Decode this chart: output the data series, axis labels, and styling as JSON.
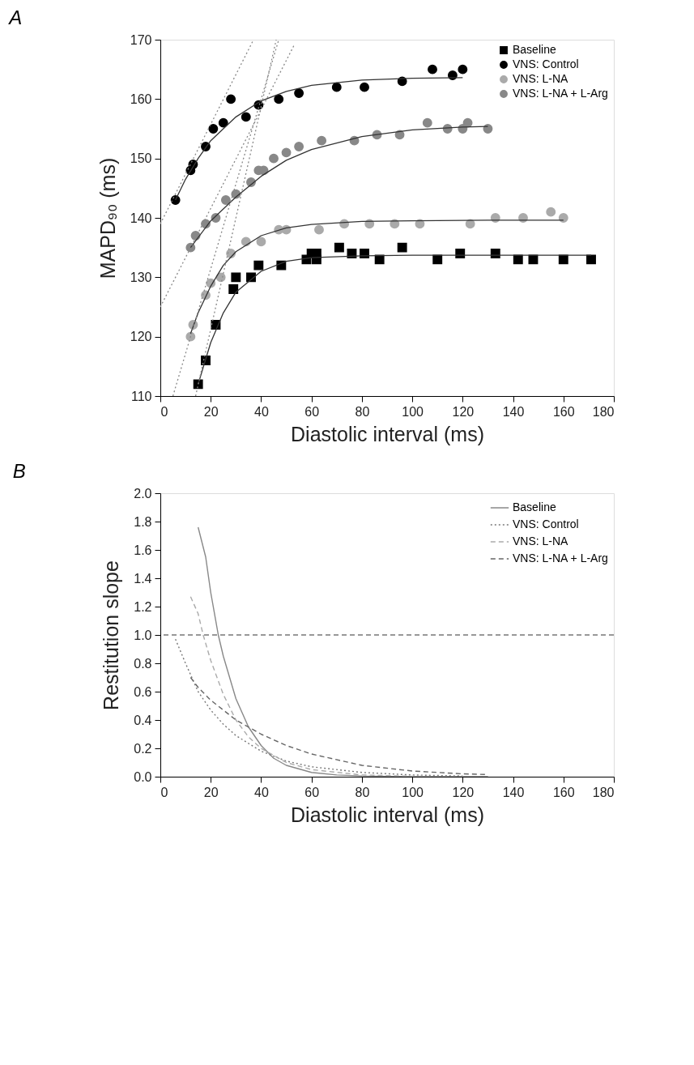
{
  "chart_data": [
    {
      "type": "scatter",
      "title": "A",
      "xlabel": "Diastolic interval (ms)",
      "ylabel": "MAPD₉₀ (ms)",
      "xlim": [
        0,
        180
      ],
      "xticks": [
        0,
        20,
        40,
        60,
        80,
        100,
        120,
        140,
        160,
        180
      ],
      "ylim": [
        110,
        170
      ],
      "yticks": [
        110,
        120,
        130,
        140,
        150,
        160,
        170
      ],
      "grid": false,
      "legend": "top right",
      "series": [
        {
          "name": "Baseline",
          "type": "scatter",
          "marker": "square",
          "color": "#000000",
          "x": [
            15,
            18,
            22,
            29,
            30,
            36,
            39,
            48,
            58,
            60,
            62,
            62,
            71,
            76,
            81,
            87,
            96,
            110,
            119,
            133,
            142,
            148,
            160,
            171
          ],
          "values": [
            112,
            116,
            122,
            128,
            130,
            130,
            132,
            132,
            133,
            134,
            134,
            133,
            135,
            134,
            134,
            133,
            135,
            133,
            134,
            134,
            133,
            133,
            133,
            133
          ]
        },
        {
          "name": "VNS: Control",
          "type": "scatter",
          "marker": "circle",
          "color": "#000000",
          "x": [
            6,
            12,
            13,
            18,
            21,
            25,
            28,
            34,
            39,
            47,
            55,
            70,
            81,
            96,
            108,
            116,
            120
          ],
          "values": [
            143,
            148,
            149,
            152,
            155,
            156,
            160,
            157,
            159,
            160,
            161,
            162,
            162,
            163,
            165,
            164,
            165
          ]
        },
        {
          "name": "VNS: L-NA",
          "type": "scatter",
          "marker": "circle",
          "color": "#aaaaaa",
          "x": [
            12,
            13,
            18,
            20,
            24,
            28,
            34,
            40,
            47,
            50,
            63,
            73,
            83,
            93,
            103,
            123,
            133,
            144,
            155,
            160
          ],
          "values": [
            120,
            122,
            127,
            129,
            130,
            134,
            136,
            136,
            138,
            138,
            138,
            139,
            139,
            139,
            139,
            139,
            140,
            140,
            141,
            140
          ]
        },
        {
          "name": "VNS: L-NA + L-Arg",
          "type": "scatter",
          "marker": "circle",
          "color": "#888888",
          "x": [
            12,
            14,
            18,
            22,
            26,
            30,
            36,
            39,
            41,
            45,
            50,
            55,
            64,
            77,
            86,
            95,
            106,
            114,
            120,
            122,
            130
          ],
          "values": [
            135,
            137,
            139,
            140,
            143,
            144,
            146,
            148,
            148,
            150,
            151,
            152,
            153,
            153,
            154,
            154,
            156,
            155,
            155,
            156,
            155
          ]
        },
        {
          "type": "line",
          "marker": "none",
          "line_style": "solid",
          "color": "#333333",
          "x": [
            15,
            20,
            25,
            30,
            40,
            50,
            60,
            80,
            100,
            130,
            171
          ],
          "values": [
            112,
            119,
            124,
            127.5,
            131,
            132.7,
            133.3,
            133.6,
            133.7,
            133.7,
            133.7
          ]
        },
        {
          "type": "line",
          "marker": "none",
          "line_style": "solid",
          "color": "#333333",
          "x": [
            6,
            10,
            15,
            20,
            30,
            40,
            50,
            60,
            80,
            100,
            120
          ],
          "values": [
            143,
            146.5,
            150,
            153,
            157,
            159.7,
            161.3,
            162.3,
            163.2,
            163.5,
            163.6
          ]
        },
        {
          "type": "line",
          "marker": "none",
          "line_style": "solid",
          "color": "#333333",
          "x": [
            12,
            15,
            20,
            25,
            30,
            40,
            50,
            60,
            80,
            100,
            130,
            160
          ],
          "values": [
            120.5,
            124,
            128.5,
            132,
            134.3,
            137,
            138.3,
            138.9,
            139.4,
            139.5,
            139.6,
            139.6
          ]
        },
        {
          "type": "line",
          "marker": "none",
          "line_style": "solid",
          "color": "#333333",
          "x": [
            12,
            20,
            30,
            40,
            50,
            60,
            80,
            100,
            120,
            130
          ],
          "values": [
            135,
            139.5,
            143.5,
            147,
            149.7,
            151.5,
            153.7,
            154.8,
            155.3,
            155.4
          ]
        },
        {
          "type": "line",
          "marker": "none",
          "line_style": "dotted",
          "color": "#888888",
          "x": [
            0,
            37
          ],
          "values": [
            139,
            170
          ]
        },
        {
          "type": "line",
          "marker": "none",
          "line_style": "dotted",
          "color": "#888888",
          "x": [
            0,
            53
          ],
          "values": [
            125,
            169
          ]
        },
        {
          "type": "line",
          "marker": "none",
          "line_style": "dotted",
          "color": "#888888",
          "x": [
            5,
            47
          ],
          "values": [
            110,
            170
          ]
        },
        {
          "type": "line",
          "marker": "none",
          "line_style": "dotted",
          "color": "#888888",
          "x": [
            14,
            46
          ],
          "values": [
            110,
            170
          ]
        }
      ]
    },
    {
      "type": "line",
      "title": "B",
      "xlabel": "Diastolic interval (ms)",
      "ylabel": "Restitution slope",
      "xlim": [
        0,
        180
      ],
      "xticks": [
        0,
        20,
        40,
        60,
        80,
        100,
        120,
        140,
        160,
        180
      ],
      "ylim": [
        0,
        2.0
      ],
      "yticks": [
        {
          "value": 0,
          "label": "0.0"
        },
        0.2,
        0.4,
        0.6,
        0.8,
        {
          "value": 1,
          "label": "1.0"
        },
        1.2,
        1.4,
        1.6,
        1.8,
        {
          "value": 2,
          "label": "2.0"
        }
      ],
      "grid": false,
      "legend": "top right",
      "marker": "none",
      "ref_lines": [
        {
          "axis": "y",
          "value": 1.0,
          "color": "#777777",
          "line_style": "dashed"
        }
      ],
      "series": [
        {
          "name": "Baseline",
          "line_style": "solid",
          "color": "#888888",
          "x": [
            15,
            18,
            20,
            23,
            25,
            30,
            35,
            40,
            45,
            50,
            60,
            70,
            80,
            100,
            130
          ],
          "values": [
            1.76,
            1.55,
            1.3,
            1.0,
            0.85,
            0.55,
            0.35,
            0.22,
            0.13,
            0.08,
            0.03,
            0.012,
            0.005,
            0.001,
            0
          ]
        },
        {
          "name": "VNS: Control",
          "line_style": "dotted",
          "color": "#777777",
          "x": [
            6,
            10,
            15,
            20,
            25,
            30,
            40,
            50,
            60,
            80,
            100,
            120
          ],
          "values": [
            0.97,
            0.8,
            0.6,
            0.47,
            0.37,
            0.29,
            0.18,
            0.11,
            0.07,
            0.03,
            0.012,
            0.005
          ]
        },
        {
          "name": "VNS: L-NA",
          "line_style": "dashed",
          "color": "#aaaaaa",
          "x": [
            12,
            15,
            17,
            20,
            25,
            30,
            35,
            40,
            50,
            60,
            80,
            100,
            130
          ],
          "values": [
            1.27,
            1.15,
            1.0,
            0.82,
            0.58,
            0.4,
            0.28,
            0.2,
            0.1,
            0.05,
            0.012,
            0.003,
            0
          ]
        },
        {
          "name": "VNS: L-NA + L-Arg",
          "line_style": "dashed",
          "color": "#666666",
          "x": [
            12,
            15,
            20,
            30,
            40,
            50,
            60,
            80,
            100,
            120,
            130
          ],
          "values": [
            0.7,
            0.63,
            0.54,
            0.4,
            0.3,
            0.22,
            0.16,
            0.08,
            0.04,
            0.02,
            0.015
          ]
        }
      ]
    }
  ]
}
